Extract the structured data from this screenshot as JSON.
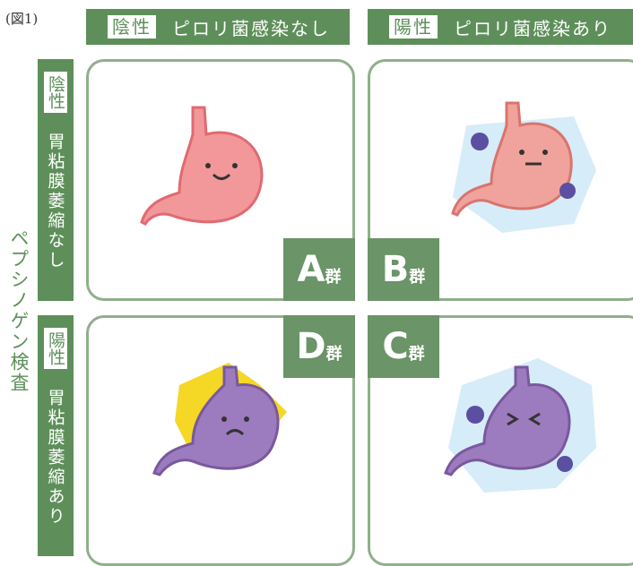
{
  "figure_label": "(図1)",
  "columns": [
    {
      "badge": "陰性",
      "label": "ピロリ菌感染なし"
    },
    {
      "badge": "陽性",
      "label": "ピロリ菌感染あり"
    }
  ],
  "side_label": "ペプシノゲン検査",
  "rows": [
    {
      "badge": "陰性",
      "label": "胃粘膜萎縮なし"
    },
    {
      "badge": "陽性",
      "label": "胃粘膜萎縮あり"
    }
  ],
  "groups": [
    {
      "letter": "A",
      "suffix": "群"
    },
    {
      "letter": "B",
      "suffix": "群"
    },
    {
      "letter": "D",
      "suffix": "群"
    },
    {
      "letter": "C",
      "suffix": "群"
    }
  ]
}
